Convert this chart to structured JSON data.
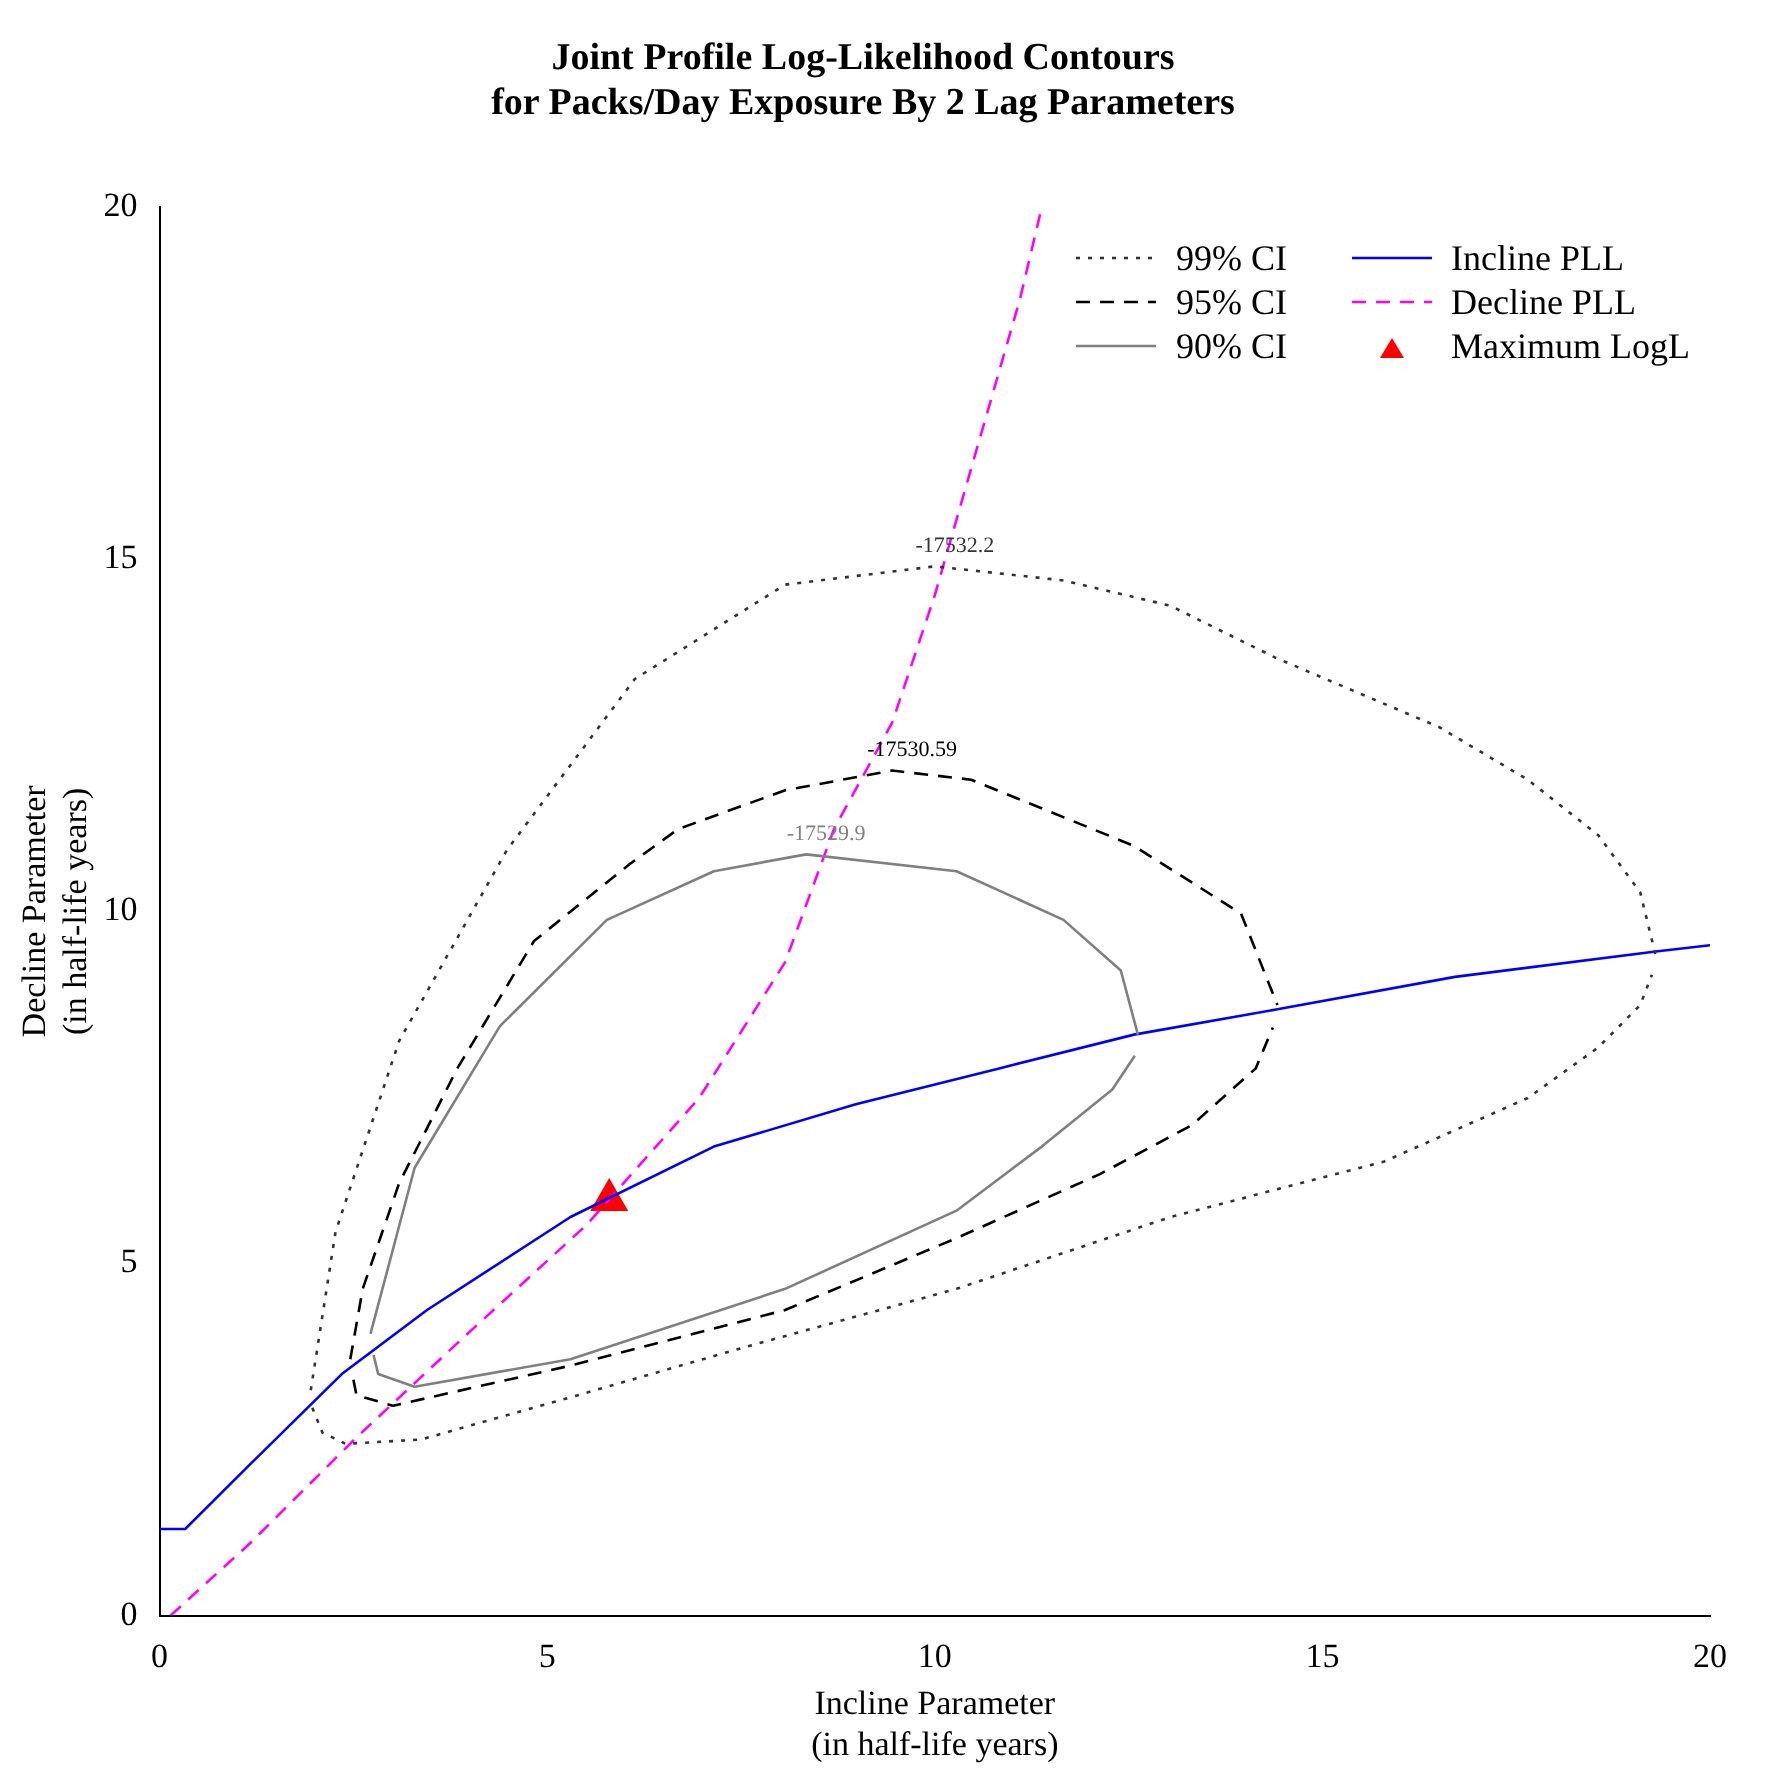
{
  "chart_data": {
    "type": "line",
    "title": "Joint Profile Log-Likelihood Contours\nfor Packs/Day Exposure By 2 Lag Parameters",
    "xlabel": "Incline Parameter\n(in half-life years)",
    "ylabel": "Decline Parameter\n(in half-life years)",
    "xlim": [
      0,
      20
    ],
    "ylim": [
      0,
      20
    ],
    "xticks": [
      0,
      5,
      10,
      15,
      20
    ],
    "yticks": [
      0,
      5,
      10,
      15,
      20
    ],
    "grid": false,
    "legend": "top right",
    "marker": "none",
    "annotations": [
      "-17532.2",
      "-17530.59",
      "-17529.9"
    ],
    "series": [
      {
        "name": "99% CI",
        "color": "#333333",
        "line_style": "dotted",
        "x": [
          1.95,
          2.27,
          3.09,
          4.48,
          6.13,
          8.07,
          10.0,
          11.66,
          13.04,
          14.4,
          16.5,
          17.65,
          18.56,
          19.1,
          19.3
        ],
        "values": [
          3.2,
          5.45,
          8.16,
          10.87,
          13.3,
          14.64,
          14.9,
          14.7,
          14.34,
          13.6,
          12.62,
          11.87,
          11.08,
          10.27,
          9.37
        ]
      },
      {
        "color": "#333333",
        "line_style": "dotted",
        "x": [
          1.97,
          2.1,
          2.4,
          3.37,
          5.3,
          7.51,
          10.28,
          13.04,
          15.8,
          17.65,
          18.56,
          19.1,
          19.25
        ],
        "values": [
          2.95,
          2.6,
          2.44,
          2.5,
          3.1,
          3.8,
          4.64,
          5.66,
          6.45,
          7.35,
          8.07,
          8.67,
          9.1
        ]
      },
      {
        "name": "95% CI",
        "color": "#000000",
        "line_style": "dashed",
        "x": [
          2.46,
          2.62,
          3.09,
          3.84,
          4.83,
          6.05,
          6.69,
          8.07,
          9.45,
          10.47,
          12.57,
          13.95,
          14.42
        ],
        "values": [
          3.64,
          4.64,
          6.14,
          7.77,
          9.58,
          10.66,
          11.17,
          11.72,
          12.0,
          11.87,
          10.93,
          9.97,
          8.67
        ]
      },
      {
        "color": "#000000",
        "line_style": "dashed",
        "x": [
          2.5,
          2.54,
          3.01,
          5.3,
          8.07,
          10.28,
          12.13,
          13.31,
          14.14,
          14.36
        ],
        "values": [
          3.35,
          3.13,
          2.98,
          3.55,
          4.34,
          5.36,
          6.27,
          6.96,
          7.77,
          8.35
        ]
      },
      {
        "name": "90% CI",
        "color": "#808080",
        "line_style": "solid",
        "x": [
          2.72,
          3.29,
          4.39,
          5.77,
          7.15,
          8.34,
          10.28,
          11.66,
          12.4,
          12.62
        ],
        "values": [
          4.0,
          6.36,
          8.37,
          9.88,
          10.57,
          10.81,
          10.57,
          9.88,
          9.16,
          8.25
        ]
      },
      {
        "color": "#808080",
        "line_style": "solid",
        "x": [
          2.76,
          2.82,
          3.29,
          5.3,
          8.07,
          10.28,
          11.38,
          12.29,
          12.58
        ],
        "values": [
          3.7,
          3.43,
          3.25,
          3.64,
          4.64,
          5.75,
          6.66,
          7.47,
          7.95
        ]
      },
      {
        "name": "Incline PLL",
        "color": "#0000ff",
        "line_style": "solid",
        "x": [
          0,
          0.33,
          1.16,
          2.35,
          3.45,
          5.3,
          7.15,
          8.98,
          10.83,
          12.57,
          14.42,
          16.71,
          19.3,
          20
        ],
        "values": [
          1.23,
          1.23,
          2.14,
          3.43,
          4.34,
          5.66,
          6.66,
          7.26,
          7.77,
          8.25,
          8.61,
          9.07,
          9.43,
          9.52
        ]
      },
      {
        "name": "Decline PLL",
        "color": "#ff00ff",
        "line_style": "dashed",
        "x": [
          0.14,
          1.16,
          2.54,
          3.92,
          5.5,
          6.96,
          8.07,
          8.7,
          9.45,
          10.0,
          10.55,
          11.1,
          11.38
        ],
        "values": [
          0.0,
          1.02,
          2.53,
          3.95,
          5.54,
          7.35,
          9.28,
          11.17,
          12.68,
          14.49,
          16.6,
          18.7,
          20
        ]
      },
      {
        "name": "Maximum LogL",
        "type": "scatter",
        "color": "#ff0000",
        "marker": "triangle",
        "x": [
          5.8
        ],
        "values": [
          5.9
        ]
      }
    ]
  }
}
